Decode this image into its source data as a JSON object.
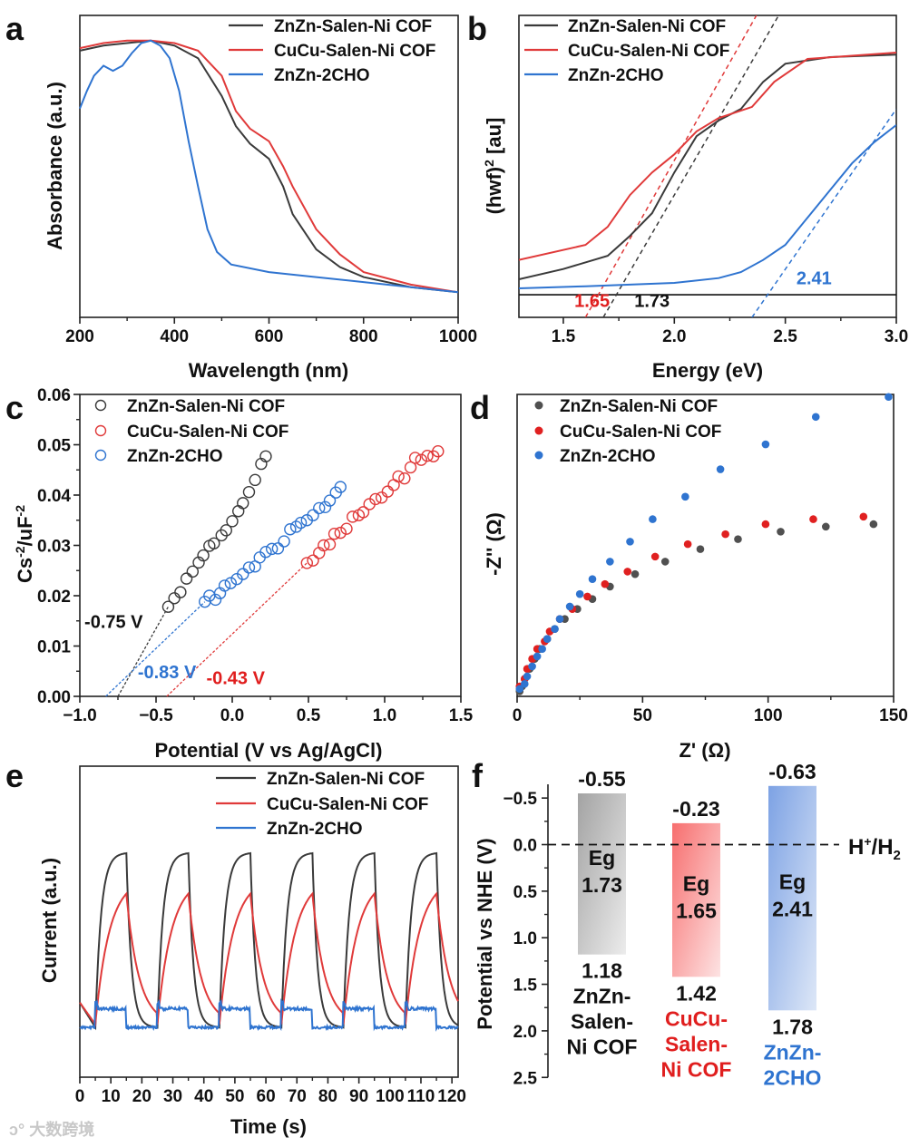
{
  "panel_labels": [
    "a",
    "b",
    "c",
    "d",
    "e",
    "f"
  ],
  "watermark": "大数跨境",
  "colors": {
    "black": "#3a3a3a",
    "red": "#e03a3a",
    "blue": "#2f74d0",
    "text_red": "#e01e1e",
    "text_blue": "#2f74d0"
  },
  "chart_data": [
    {
      "id": "a",
      "type": "line",
      "xlabel": "Wavelength (nm)",
      "ylabel": "Absorbance (a.u.)",
      "xlim": [
        200,
        1000
      ],
      "ylim": [
        -0.1,
        1.1
      ],
      "xticks": [
        200,
        400,
        600,
        800,
        1000
      ],
      "xtick_labels": [
        "200",
        "400",
        "600",
        "800",
        "1000"
      ],
      "legend": [
        "ZnZn-Salen-Ni COF",
        "CuCu-Salen-Ni COF",
        "ZnZn-2CHO"
      ],
      "series": [
        {
          "name": "ZnZn-Salen-Ni COF",
          "color": "#3a3a3a",
          "x": [
            200,
            250,
            300,
            350,
            400,
            450,
            500,
            530,
            560,
            600,
            630,
            650,
            700,
            750,
            800,
            900,
            1000
          ],
          "y": [
            0.96,
            0.98,
            0.99,
            1.0,
            0.98,
            0.93,
            0.78,
            0.66,
            0.59,
            0.53,
            0.42,
            0.31,
            0.17,
            0.1,
            0.06,
            0.02,
            0.0
          ]
        },
        {
          "name": "CuCu-Salen-Ni COF",
          "color": "#e03a3a",
          "x": [
            200,
            250,
            300,
            350,
            400,
            450,
            500,
            530,
            560,
            600,
            630,
            650,
            700,
            750,
            800,
            900,
            1000
          ],
          "y": [
            0.97,
            0.99,
            1.0,
            1.0,
            0.99,
            0.96,
            0.86,
            0.72,
            0.65,
            0.6,
            0.5,
            0.42,
            0.25,
            0.15,
            0.08,
            0.03,
            0.0
          ]
        },
        {
          "name": "ZnZn-2CHO",
          "color": "#2f74d0",
          "x": [
            200,
            215,
            230,
            250,
            270,
            290,
            310,
            330,
            350,
            370,
            390,
            410,
            430,
            450,
            470,
            490,
            520,
            600,
            700,
            800,
            1000
          ],
          "y": [
            0.73,
            0.8,
            0.86,
            0.9,
            0.88,
            0.9,
            0.95,
            0.99,
            1.0,
            0.98,
            0.93,
            0.8,
            0.6,
            0.42,
            0.25,
            0.16,
            0.11,
            0.08,
            0.06,
            0.04,
            0.0
          ]
        }
      ]
    },
    {
      "id": "b",
      "type": "line",
      "xlabel": "Energy (eV)",
      "ylabel_main": "(hwf)",
      "ylabel_sup": "2",
      "ylabel_tail": " [au]",
      "xlim": [
        1.3,
        3.0
      ],
      "ylim": [
        0,
        1
      ],
      "xticks": [
        1.5,
        2.0,
        2.5,
        3.0
      ],
      "xtick_labels": [
        "1.5",
        "2.0",
        "2.5",
        "3.0"
      ],
      "legend": [
        "ZnZn-Salen-Ni COF",
        "CuCu-Salen-Ni COF",
        "ZnZn-2CHO"
      ],
      "baseline": 0.075,
      "series": [
        {
          "name": "ZnZn-Salen-Ni COF",
          "color": "#3a3a3a",
          "x": [
            1.3,
            1.5,
            1.7,
            1.8,
            1.9,
            2.0,
            2.1,
            2.2,
            2.3,
            2.4,
            2.5,
            2.7,
            3.0
          ],
          "y": [
            0.126,
            0.16,
            0.204,
            0.27,
            0.345,
            0.48,
            0.6,
            0.652,
            0.69,
            0.78,
            0.84,
            0.862,
            0.87
          ]
        },
        {
          "name": "CuCu-Salen-Ni COF",
          "color": "#e03a3a",
          "x": [
            1.3,
            1.6,
            1.7,
            1.8,
            1.9,
            2.0,
            2.1,
            2.2,
            2.35,
            2.45,
            2.6,
            3.0
          ],
          "y": [
            0.19,
            0.24,
            0.3,
            0.405,
            0.48,
            0.54,
            0.616,
            0.66,
            0.697,
            0.78,
            0.856,
            0.877
          ]
        },
        {
          "name": "ZnZn-2CHO",
          "color": "#2f74d0",
          "x": [
            1.3,
            1.6,
            2.0,
            2.2,
            2.3,
            2.4,
            2.5,
            2.6,
            2.7,
            2.8,
            2.9,
            3.0
          ],
          "y": [
            0.096,
            0.103,
            0.114,
            0.13,
            0.15,
            0.19,
            0.24,
            0.33,
            0.42,
            0.51,
            0.58,
            0.637
          ]
        }
      ],
      "tangents": [
        {
          "color": "#3a3a3a",
          "x": [
            1.68,
            2.47
          ],
          "y": [
            0.0,
            1.0
          ]
        },
        {
          "color": "#e03a3a",
          "x": [
            1.6,
            2.37
          ],
          "y": [
            0.0,
            1.0
          ]
        },
        {
          "color": "#2f74d0",
          "x": [
            2.35,
            3.0
          ],
          "y": [
            0.0,
            0.69
          ]
        }
      ],
      "annotations": [
        {
          "text": "1.65",
          "color": "#e01e1e",
          "x": 1.55,
          "y": 0.035
        },
        {
          "text": "1.73",
          "color": "#111111",
          "x": 1.82,
          "y": 0.035
        },
        {
          "text": "2.41",
          "color": "#2f74d0",
          "x": 2.55,
          "y": 0.11
        }
      ]
    },
    {
      "id": "c",
      "type": "scatter",
      "xlabel": "Potential (V vs Ag/AgCl)",
      "ylabel_main": "Cs",
      "ylabel_sup1": "-2",
      "ylabel_mid": "/uF",
      "ylabel_sup2": "-2",
      "xlim": [
        -1.0,
        1.5
      ],
      "ylim": [
        0,
        0.06
      ],
      "xticks": [
        -1.0,
        -0.5,
        0.0,
        0.5,
        1.0,
        1.5
      ],
      "xtick_labels": [
        "−1.0",
        "−0.5",
        "0.0",
        "0.5",
        "1.0",
        "1.5"
      ],
      "yticks": [
        0,
        0.01,
        0.02,
        0.03,
        0.04,
        0.05,
        0.06
      ],
      "ytick_labels": [
        "0.00",
        "0.01",
        "0.02",
        "0.03",
        "0.04",
        "0.05",
        "0.06"
      ],
      "legend": [
        "ZnZn-Salen-Ni COF",
        "CuCu-Salen-Ni COF",
        "ZnZn-2CHO"
      ],
      "series": [
        {
          "name": "ZnZn-Salen-Ni COF",
          "color": "#3a3a3a",
          "x": [
            -0.42,
            -0.38,
            -0.34,
            -0.3,
            -0.26,
            -0.22,
            -0.19,
            -0.15,
            -0.12,
            -0.07,
            -0.04,
            0.0,
            0.04,
            0.07,
            0.11,
            0.15,
            0.19,
            0.22
          ],
          "y": [
            0.0178,
            0.0195,
            0.0207,
            0.0234,
            0.0248,
            0.0266,
            0.028,
            0.0299,
            0.0304,
            0.032,
            0.033,
            0.0348,
            0.0368,
            0.0384,
            0.0406,
            0.043,
            0.0462,
            0.0477
          ]
        },
        {
          "name": "CuCu-Salen-Ni COF",
          "color": "#e03a3a",
          "x": [
            0.49,
            0.53,
            0.57,
            0.6,
            0.64,
            0.67,
            0.71,
            0.75,
            0.79,
            0.83,
            0.86,
            0.9,
            0.94,
            0.98,
            1.02,
            1.06,
            1.09,
            1.13,
            1.17,
            1.2,
            1.24,
            1.28,
            1.32,
            1.35
          ],
          "y": [
            0.0265,
            0.027,
            0.0285,
            0.03,
            0.0302,
            0.0323,
            0.0325,
            0.0333,
            0.0357,
            0.036,
            0.0366,
            0.0382,
            0.0392,
            0.0395,
            0.0407,
            0.042,
            0.0437,
            0.0433,
            0.0455,
            0.0474,
            0.047,
            0.0478,
            0.0477,
            0.0487
          ]
        },
        {
          "name": "ZnZn-2CHO",
          "color": "#2f74d0",
          "x": [
            -0.18,
            -0.15,
            -0.11,
            -0.08,
            -0.05,
            -0.01,
            0.03,
            0.07,
            0.11,
            0.15,
            0.18,
            0.22,
            0.26,
            0.3,
            0.34,
            0.38,
            0.42,
            0.45,
            0.49,
            0.53,
            0.57,
            0.61,
            0.64,
            0.68,
            0.71
          ],
          "y": [
            0.0188,
            0.02,
            0.0192,
            0.0205,
            0.022,
            0.0225,
            0.0233,
            0.0243,
            0.0256,
            0.0258,
            0.0276,
            0.0287,
            0.0293,
            0.0294,
            0.0308,
            0.0332,
            0.0337,
            0.0345,
            0.035,
            0.036,
            0.0374,
            0.0376,
            0.0389,
            0.0405,
            0.0416
          ]
        }
      ],
      "fits": [
        {
          "color": "#3a3a3a",
          "x": [
            -0.75,
            -0.42
          ],
          "y": [
            0,
            0.0178
          ]
        },
        {
          "color": "#2f74d0",
          "x": [
            -0.83,
            -0.18
          ],
          "y": [
            0,
            0.0188
          ]
        },
        {
          "color": "#e03a3a",
          "x": [
            -0.43,
            0.49
          ],
          "y": [
            0,
            0.0265
          ]
        }
      ],
      "annotations": [
        {
          "text": "-0.75 V",
          "color": "#111111",
          "x": -0.97,
          "y": 0.0136
        },
        {
          "text": "-0.83 V",
          "color": "#2f74d0",
          "x": -0.62,
          "y": 0.0036
        },
        {
          "text": "-0.43 V",
          "color": "#e01e1e",
          "x": -0.17,
          "y": 0.0024
        }
      ]
    },
    {
      "id": "d",
      "type": "scatter",
      "xlabel": "Z' (Ω)",
      "ylabel": "-Z'' (Ω)",
      "xlim": [
        0,
        150
      ],
      "ylim": [
        0,
        121
      ],
      "xticks": [
        0,
        50,
        100,
        150
      ],
      "xtick_labels": [
        "0",
        "50",
        "100",
        "150"
      ],
      "legend": [
        "ZnZn-Salen-Ni COF",
        "CuCu-Salen-Ni COF",
        "ZnZn-2CHO"
      ],
      "series": [
        {
          "name": "ZnZn-Salen-Ni COF",
          "color": "#505050",
          "x": [
            1,
            2,
            3,
            5,
            7,
            9,
            12,
            15,
            19,
            24,
            30,
            37,
            47,
            59,
            73,
            88,
            105,
            123,
            142
          ],
          "y": [
            2,
            4,
            7,
            11,
            15,
            19,
            23,
            27,
            31,
            35,
            39,
            44,
            49,
            54,
            59,
            63,
            66,
            68,
            69
          ]
        },
        {
          "name": "CuCu-Salen-Ni COF",
          "color": "#e02020",
          "x": [
            1,
            3,
            4,
            6,
            8,
            11,
            13,
            17,
            22,
            28,
            35,
            44,
            55,
            68,
            83,
            99,
            118,
            138
          ],
          "y": [
            4,
            7,
            11,
            15,
            19,
            22,
            26,
            31,
            35,
            40,
            45,
            50,
            56,
            61,
            65,
            69,
            71,
            72
          ]
        },
        {
          "name": "ZnZn-2CHO",
          "color": "#2f74d0",
          "x": [
            1,
            3,
            4,
            6,
            8,
            10,
            12,
            15,
            17,
            21,
            25,
            30,
            37,
            45,
            54,
            67,
            81,
            99,
            119,
            148
          ],
          "y": [
            3,
            5,
            8,
            12,
            16,
            19,
            23,
            27,
            31,
            36,
            41,
            47,
            54,
            62,
            71,
            80,
            91,
            101,
            112,
            120
          ]
        }
      ]
    },
    {
      "id": "e",
      "type": "line",
      "xlabel": "Time (s)",
      "ylabel": "Current (a.u.)",
      "xlim": [
        0,
        122
      ],
      "ylim": [
        0,
        1
      ],
      "xticks": [
        0,
        10,
        20,
        30,
        40,
        50,
        60,
        70,
        80,
        90,
        100,
        110,
        120
      ],
      "xtick_labels": [
        "0",
        "10",
        "20",
        "30",
        "40",
        "50",
        "60",
        "70",
        "80",
        "90",
        "100",
        "110",
        "120"
      ],
      "legend": [
        "ZnZn-Salen-Ni COF",
        "CuCu-Salen-Ni COF",
        "ZnZn-2CHO"
      ],
      "light_on_intervals": [
        [
          5,
          15
        ],
        [
          25,
          35
        ],
        [
          45,
          55
        ],
        [
          65,
          75
        ],
        [
          85,
          95
        ],
        [
          105,
          115
        ]
      ],
      "series": [
        {
          "name": "ZnZn-Salen-Ni COF",
          "color": "#3a3a3a",
          "baseline": 0.16,
          "peak": 0.72,
          "start": 0.24
        },
        {
          "name": "CuCu-Salen-Ni COF",
          "color": "#e03a3a",
          "baseline": 0.17,
          "peak": 0.59,
          "start": 0.24
        },
        {
          "name": "ZnZn-2CHO",
          "color": "#2f74d0",
          "baseline": 0.16,
          "peak": 0.24,
          "start": 0.16
        }
      ]
    },
    {
      "id": "f",
      "type": "bar",
      "ylabel": "Potential vs NHE (V)",
      "ylim": [
        -0.65,
        2.5
      ],
      "yticks": [
        -0.5,
        0.0,
        0.5,
        1.0,
        1.5,
        2.0,
        2.5
      ],
      "ytick_labels": [
        "−0.5",
        "0.0",
        "0.5",
        "1.0",
        "1.5",
        "2.0",
        "2.5"
      ],
      "reference_line": {
        "value": 0.0,
        "label_main": "H",
        "label_sup": "+",
        "label_mid": "/H",
        "label_sub": "2"
      },
      "bars": [
        {
          "name_lines": [
            "ZnZn-",
            "Salen-",
            "Ni COF"
          ],
          "cb": -0.55,
          "vb": 1.18,
          "cb_label": "-0.55",
          "vb_label": "1.18",
          "eg_label": "Eg",
          "eg": "1.73",
          "color_top": "#a3a3a3",
          "color_bottom": "#ececec",
          "name_color": "#111111"
        },
        {
          "name_lines": [
            "CuCu-",
            "Salen-",
            "Ni COF"
          ],
          "cb": -0.23,
          "vb": 1.42,
          "cb_label": "-0.23",
          "vb_label": "1.42",
          "eg_label": "Eg",
          "eg": "1.65",
          "color_top": "#f76e6e",
          "color_bottom": "#fde3e3",
          "name_color": "#e01e1e"
        },
        {
          "name_lines": [
            "ZnZn-",
            "2CHO"
          ],
          "cb": -0.63,
          "vb": 1.78,
          "cb_label": "-0.63",
          "vb_label": "1.78",
          "eg_label": "Eg",
          "eg": "2.41",
          "color_top": "#7da2e4",
          "color_bottom": "#dde7f7",
          "name_color": "#2f74d0"
        }
      ]
    }
  ]
}
